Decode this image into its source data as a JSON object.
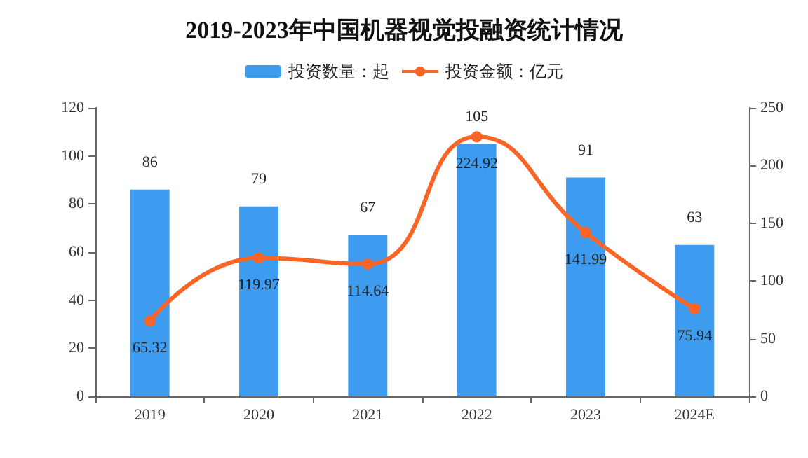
{
  "chart_data": {
    "type": "bar",
    "title": "2019-2023年中国机器视觉投融资统计情况",
    "categories": [
      "2019",
      "2020",
      "2021",
      "2022",
      "2023",
      "2024E"
    ],
    "series": [
      {
        "name": "投资数量：起",
        "color": "#3d9cf0",
        "values": [
          86,
          79,
          67,
          105,
          91,
          63
        ]
      },
      {
        "name": "投资金额：亿元",
        "type": "line",
        "axis": "y2",
        "color": "#fa6424",
        "values": [
          65.32,
          119.97,
          114.64,
          224.92,
          141.99,
          75.94
        ]
      }
    ],
    "ylim": [
      0,
      120
    ],
    "yticks": [
      0,
      20,
      40,
      60,
      80,
      100,
      120
    ],
    "y2lim": [
      0,
      250
    ],
    "y2ticks": [
      0,
      50,
      100,
      150,
      200,
      250
    ],
    "data_labels": true,
    "legend": "top",
    "marker": "circle",
    "line_style": "solid"
  }
}
